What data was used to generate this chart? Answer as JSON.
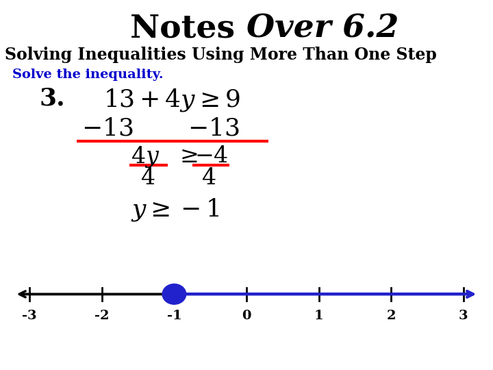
{
  "title_notes": "Notes ",
  "title_over": "Over 6.2",
  "subtitle": "Solving Inequalities Using More Than One Step",
  "instruction": "Solve the inequality.",
  "bg_color": "#ffffff",
  "title_fontsize": 34,
  "subtitle_fontsize": 17,
  "instruction_color": "#0000cc",
  "number_line": {
    "ticks": [
      -3,
      -2,
      -1,
      0,
      1,
      2,
      3
    ],
    "filled_dot": -1,
    "line_color_left": "#000000",
    "line_color_right": "#2222cc",
    "dot_color": "#2222cc"
  }
}
